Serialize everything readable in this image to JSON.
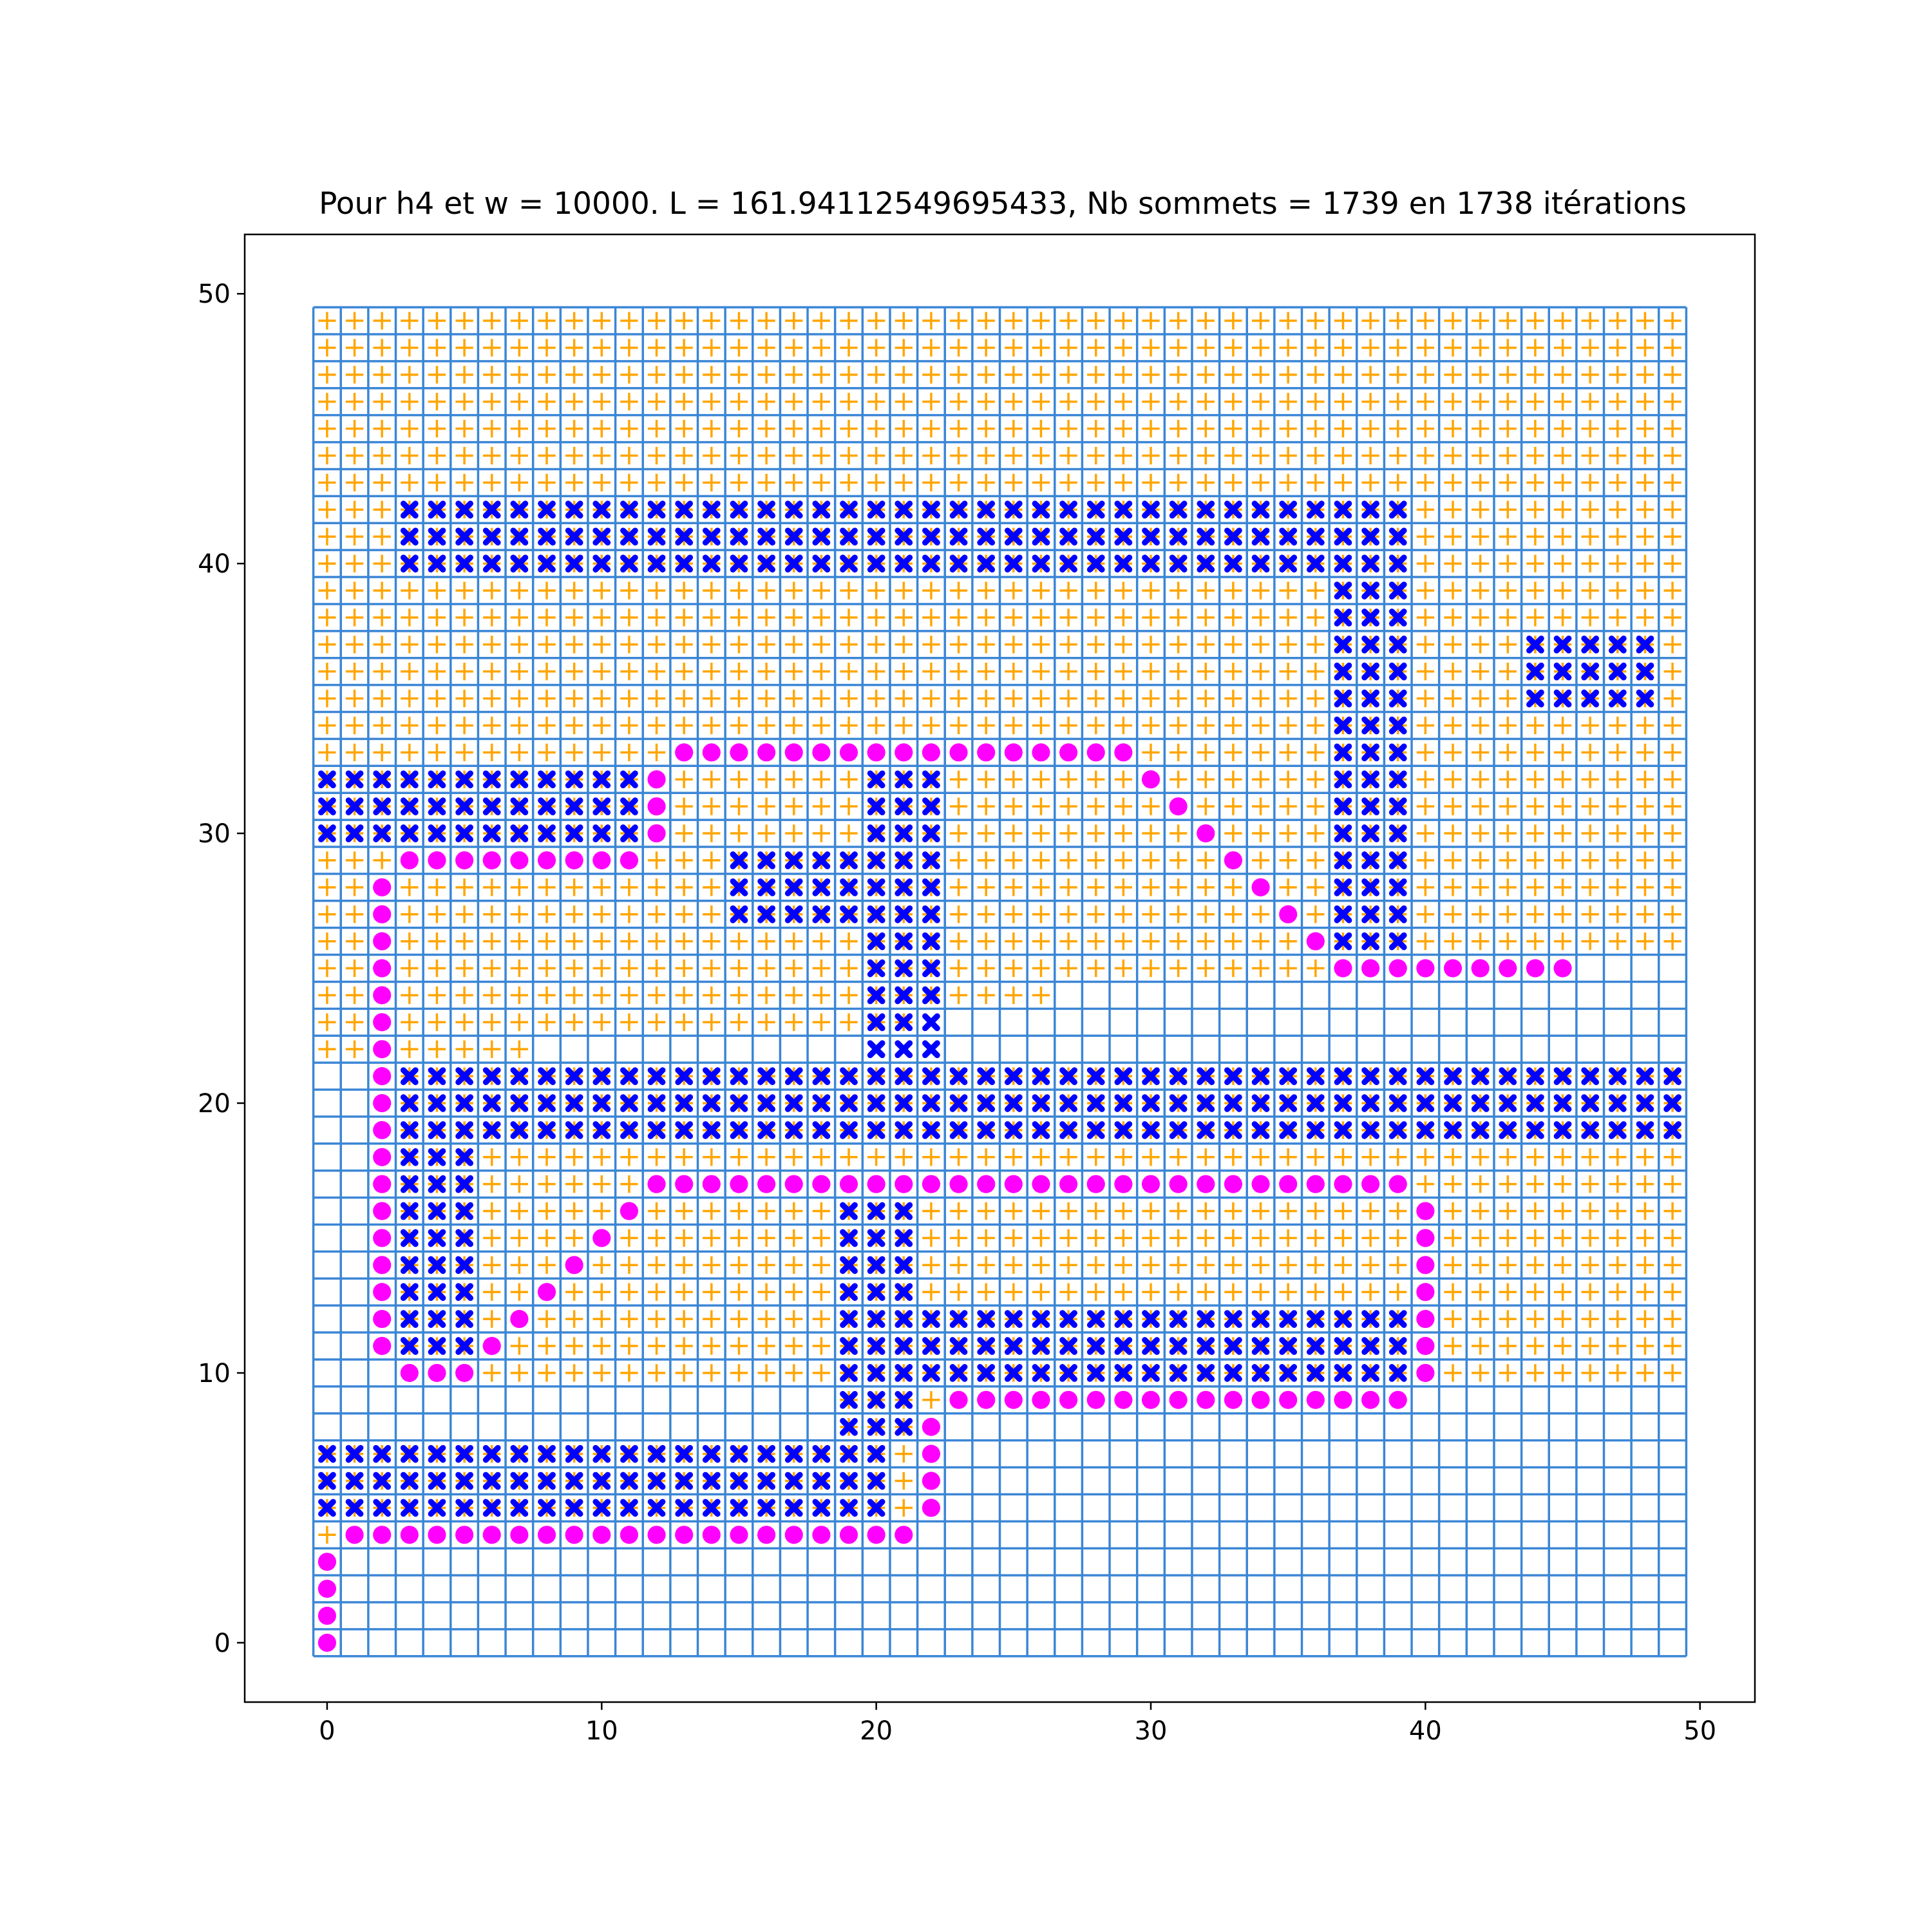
{
  "chart_data": {
    "type": "scatter",
    "title": "Pour h4 et w = 10000. L = 161.94112549695433, Nb sommets = 1739 en 1738 itérations",
    "xlabel": "",
    "ylabel": "",
    "xlim": [
      -3,
      52
    ],
    "ylim": [
      -2.2,
      52.2
    ],
    "xticks": [
      0,
      10,
      20,
      30,
      40,
      50
    ],
    "yticks": [
      0,
      10,
      20,
      30,
      40,
      50
    ],
    "grid": {
      "nx": 50,
      "ny": 50,
      "color": "#3b86d6"
    },
    "colors": {
      "explored": "#ffa500",
      "obstacle": "#0000ff",
      "path": "#ff00ff"
    },
    "explored_rows": [
      {
        "y": 49,
        "x0": 0,
        "x1": 49
      },
      {
        "y": 48,
        "x0": 0,
        "x1": 49
      },
      {
        "y": 47,
        "x0": 0,
        "x1": 49
      },
      {
        "y": 46,
        "x0": 0,
        "x1": 49
      },
      {
        "y": 45,
        "x0": 0,
        "x1": 49
      },
      {
        "y": 44,
        "x0": 0,
        "x1": 49
      },
      {
        "y": 43,
        "x0": 0,
        "x1": 49
      },
      {
        "y": 42,
        "x0": 0,
        "x1": 49
      },
      {
        "y": 41,
        "x0": 0,
        "x1": 49
      },
      {
        "y": 40,
        "x0": 0,
        "x1": 49
      },
      {
        "y": 39,
        "x0": 0,
        "x1": 49
      },
      {
        "y": 38,
        "x0": 0,
        "x1": 49
      },
      {
        "y": 37,
        "x0": 0,
        "x1": 49
      },
      {
        "y": 36,
        "x0": 0,
        "x1": 49
      },
      {
        "y": 35,
        "x0": 0,
        "x1": 49
      },
      {
        "y": 34,
        "x0": 0,
        "x1": 49
      },
      {
        "y": 33,
        "x0": 0,
        "x1": 49
      },
      {
        "y": 32,
        "x0": 0,
        "x1": 49
      },
      {
        "y": 31,
        "x0": 0,
        "x1": 49
      },
      {
        "y": 30,
        "x0": 0,
        "x1": 49
      },
      {
        "y": 29,
        "x0": 0,
        "x1": 49
      },
      {
        "y": 28,
        "x0": 0,
        "x1": 49
      },
      {
        "y": 27,
        "x0": 0,
        "x1": 49
      },
      {
        "y": 26,
        "x0": 0,
        "x1": 49
      },
      {
        "y": 25,
        "x0": 0,
        "x1": 45
      },
      {
        "y": 24,
        "x0": 0,
        "x1": 26
      },
      {
        "y": 23,
        "x0": 0,
        "x1": 21
      },
      {
        "y": 22,
        "x0": 0,
        "x1": 7
      },
      {
        "y": 21,
        "x0": 2,
        "x1": 49
      },
      {
        "y": 20,
        "x0": 2,
        "x1": 49
      },
      {
        "y": 19,
        "x0": 2,
        "x1": 49
      },
      {
        "y": 18,
        "x0": 2,
        "x1": 49
      },
      {
        "y": 17,
        "x0": 2,
        "x1": 49
      },
      {
        "y": 16,
        "x0": 2,
        "x1": 49
      },
      {
        "y": 15,
        "x0": 2,
        "x1": 49
      },
      {
        "y": 14,
        "x0": 2,
        "x1": 49
      },
      {
        "y": 13,
        "x0": 2,
        "x1": 49
      },
      {
        "y": 12,
        "x0": 2,
        "x1": 49
      },
      {
        "y": 11,
        "x0": 2,
        "x1": 49
      },
      {
        "y": 10,
        "x0": 3,
        "x1": 49
      },
      {
        "y": 9,
        "x0": 19,
        "x1": 39
      },
      {
        "y": 8,
        "x0": 19,
        "x1": 22
      },
      {
        "y": 7,
        "x0": 0,
        "x1": 22
      },
      {
        "y": 6,
        "x0": 0,
        "x1": 22
      },
      {
        "y": 5,
        "x0": 0,
        "x1": 22
      },
      {
        "y": 4,
        "x0": 0,
        "x1": 21
      }
    ],
    "obstacle_rects": [
      {
        "x0": 3,
        "x1": 39,
        "y0": 40,
        "y1": 42
      },
      {
        "x0": 37,
        "x1": 39,
        "y0": 26,
        "y1": 39
      },
      {
        "x0": 44,
        "x1": 48,
        "y0": 35,
        "y1": 37
      },
      {
        "x0": 0,
        "x1": 11,
        "y0": 30,
        "y1": 32
      },
      {
        "x0": 20,
        "x1": 22,
        "y0": 22,
        "y1": 32
      },
      {
        "x0": 15,
        "x1": 19,
        "y0": 27,
        "y1": 29
      },
      {
        "x0": 3,
        "x1": 49,
        "y0": 19,
        "y1": 21
      },
      {
        "x0": 3,
        "x1": 5,
        "y0": 11,
        "y1": 18
      },
      {
        "x0": 19,
        "x1": 21,
        "y0": 8,
        "y1": 16
      },
      {
        "x0": 22,
        "x1": 39,
        "y0": 10,
        "y1": 12
      },
      {
        "x0": 0,
        "x1": 20,
        "y0": 5,
        "y1": 7
      }
    ],
    "path": [
      [
        0,
        0
      ],
      [
        0,
        1
      ],
      [
        0,
        2
      ],
      [
        0,
        3
      ],
      [
        1,
        4
      ],
      [
        2,
        4
      ],
      [
        3,
        4
      ],
      [
        4,
        4
      ],
      [
        5,
        4
      ],
      [
        6,
        4
      ],
      [
        7,
        4
      ],
      [
        8,
        4
      ],
      [
        9,
        4
      ],
      [
        10,
        4
      ],
      [
        11,
        4
      ],
      [
        12,
        4
      ],
      [
        13,
        4
      ],
      [
        14,
        4
      ],
      [
        15,
        4
      ],
      [
        16,
        4
      ],
      [
        17,
        4
      ],
      [
        18,
        4
      ],
      [
        19,
        4
      ],
      [
        20,
        4
      ],
      [
        21,
        4
      ],
      [
        22,
        5
      ],
      [
        22,
        6
      ],
      [
        22,
        7
      ],
      [
        22,
        8
      ],
      [
        23,
        9
      ],
      [
        24,
        9
      ],
      [
        25,
        9
      ],
      [
        26,
        9
      ],
      [
        27,
        9
      ],
      [
        28,
        9
      ],
      [
        29,
        9
      ],
      [
        30,
        9
      ],
      [
        31,
        9
      ],
      [
        32,
        9
      ],
      [
        33,
        9
      ],
      [
        34,
        9
      ],
      [
        35,
        9
      ],
      [
        36,
        9
      ],
      [
        37,
        9
      ],
      [
        38,
        9
      ],
      [
        39,
        9
      ],
      [
        40,
        10
      ],
      [
        40,
        11
      ],
      [
        40,
        12
      ],
      [
        40,
        13
      ],
      [
        40,
        14
      ],
      [
        40,
        15
      ],
      [
        40,
        16
      ],
      [
        39,
        17
      ],
      [
        38,
        17
      ],
      [
        37,
        17
      ],
      [
        36,
        17
      ],
      [
        35,
        17
      ],
      [
        34,
        17
      ],
      [
        33,
        17
      ],
      [
        32,
        17
      ],
      [
        31,
        17
      ],
      [
        30,
        17
      ],
      [
        29,
        17
      ],
      [
        28,
        17
      ],
      [
        27,
        17
      ],
      [
        26,
        17
      ],
      [
        25,
        17
      ],
      [
        24,
        17
      ],
      [
        23,
        17
      ],
      [
        22,
        17
      ],
      [
        21,
        17
      ],
      [
        20,
        17
      ],
      [
        19,
        17
      ],
      [
        18,
        17
      ],
      [
        17,
        17
      ],
      [
        16,
        17
      ],
      [
        15,
        17
      ],
      [
        14,
        17
      ],
      [
        13,
        17
      ],
      [
        12,
        17
      ],
      [
        11,
        16
      ],
      [
        10,
        15
      ],
      [
        9,
        14
      ],
      [
        8,
        13
      ],
      [
        7,
        12
      ],
      [
        6,
        11
      ],
      [
        5,
        10
      ],
      [
        4,
        10
      ],
      [
        3,
        10
      ],
      [
        2,
        11
      ],
      [
        2,
        12
      ],
      [
        2,
        13
      ],
      [
        2,
        14
      ],
      [
        2,
        15
      ],
      [
        2,
        16
      ],
      [
        2,
        17
      ],
      [
        2,
        18
      ],
      [
        2,
        19
      ],
      [
        2,
        20
      ],
      [
        2,
        21
      ],
      [
        2,
        22
      ],
      [
        2,
        23
      ],
      [
        2,
        24
      ],
      [
        2,
        25
      ],
      [
        2,
        26
      ],
      [
        2,
        27
      ],
      [
        2,
        28
      ],
      [
        3,
        29
      ],
      [
        4,
        29
      ],
      [
        5,
        29
      ],
      [
        6,
        29
      ],
      [
        7,
        29
      ],
      [
        8,
        29
      ],
      [
        9,
        29
      ],
      [
        10,
        29
      ],
      [
        11,
        29
      ],
      [
        12,
        30
      ],
      [
        12,
        31
      ],
      [
        12,
        32
      ],
      [
        13,
        33
      ],
      [
        14,
        33
      ],
      [
        15,
        33
      ],
      [
        16,
        33
      ],
      [
        17,
        33
      ],
      [
        18,
        33
      ],
      [
        19,
        33
      ],
      [
        20,
        33
      ],
      [
        21,
        33
      ],
      [
        22,
        33
      ],
      [
        23,
        33
      ],
      [
        24,
        33
      ],
      [
        25,
        33
      ],
      [
        26,
        33
      ],
      [
        27,
        33
      ],
      [
        28,
        33
      ],
      [
        29,
        33
      ],
      [
        30,
        32
      ],
      [
        31,
        31
      ],
      [
        32,
        30
      ],
      [
        33,
        29
      ],
      [
        34,
        28
      ],
      [
        35,
        27
      ],
      [
        36,
        26
      ],
      [
        37,
        25
      ],
      [
        38,
        25
      ],
      [
        39,
        25
      ],
      [
        40,
        25
      ],
      [
        41,
        25
      ],
      [
        42,
        25
      ],
      [
        43,
        25
      ],
      [
        44,
        25
      ],
      [
        45,
        25
      ]
    ]
  }
}
